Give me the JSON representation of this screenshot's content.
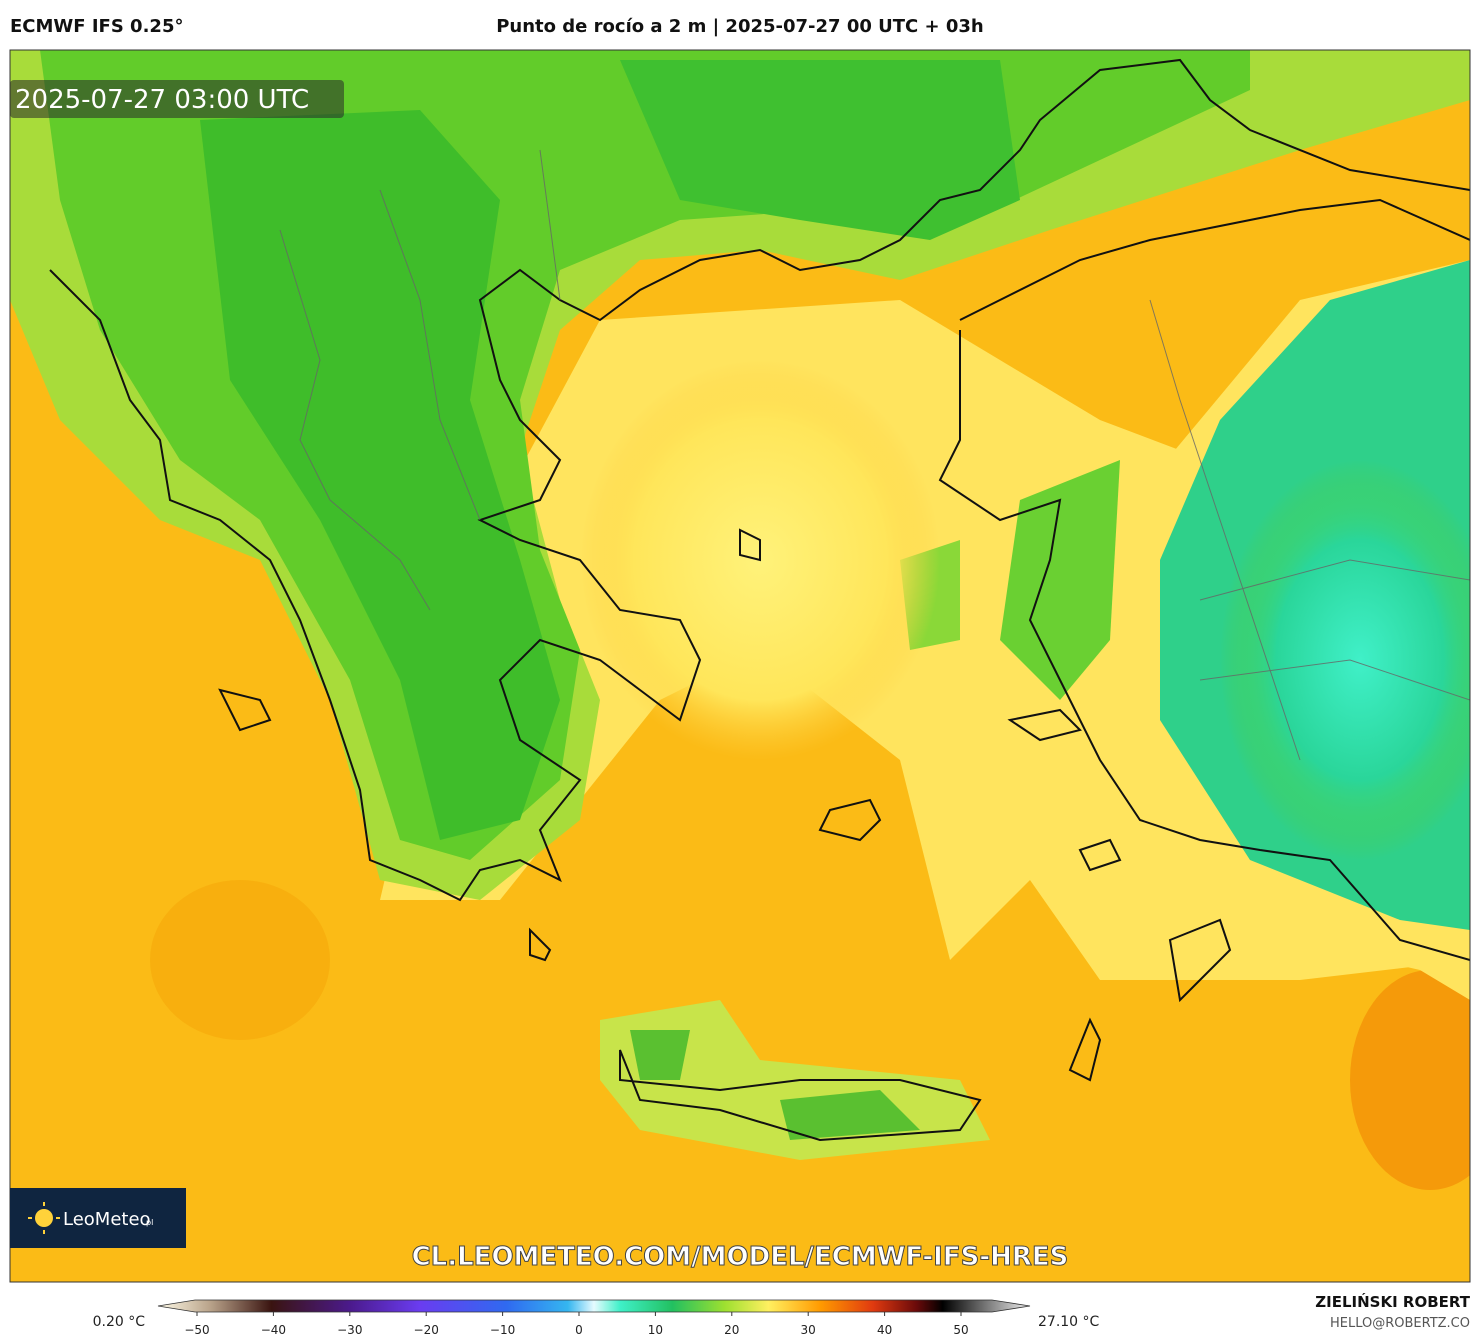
{
  "header": {
    "model": "ECMWF IFS 0.25°",
    "title": "Punto de rocío a 2 m | 2025-07-27 00 UTC + 03h"
  },
  "map": {
    "timestamp": "2025-07-27 03:00 UTC",
    "logo": "LeoMeteo",
    "logo_suffix": "pl",
    "url": "CL.LEOMETEO.COM/MODEL/ECMWF-IFS-HRES"
  },
  "colorbar": {
    "min_label": "0.20 °C",
    "max_label": "27.10 °C",
    "ticks": [
      {
        "value": -50,
        "label": "−50"
      },
      {
        "value": -40,
        "label": "−40"
      },
      {
        "value": -30,
        "label": "−30"
      },
      {
        "value": -20,
        "label": "−20"
      },
      {
        "value": -10,
        "label": "−10"
      },
      0,
      10,
      20,
      30,
      40,
      50
    ]
  },
  "footer": {
    "author": "ZIELIŃSKI ROBERT",
    "email": "HELLO@ROBERTZ.CO"
  }
}
